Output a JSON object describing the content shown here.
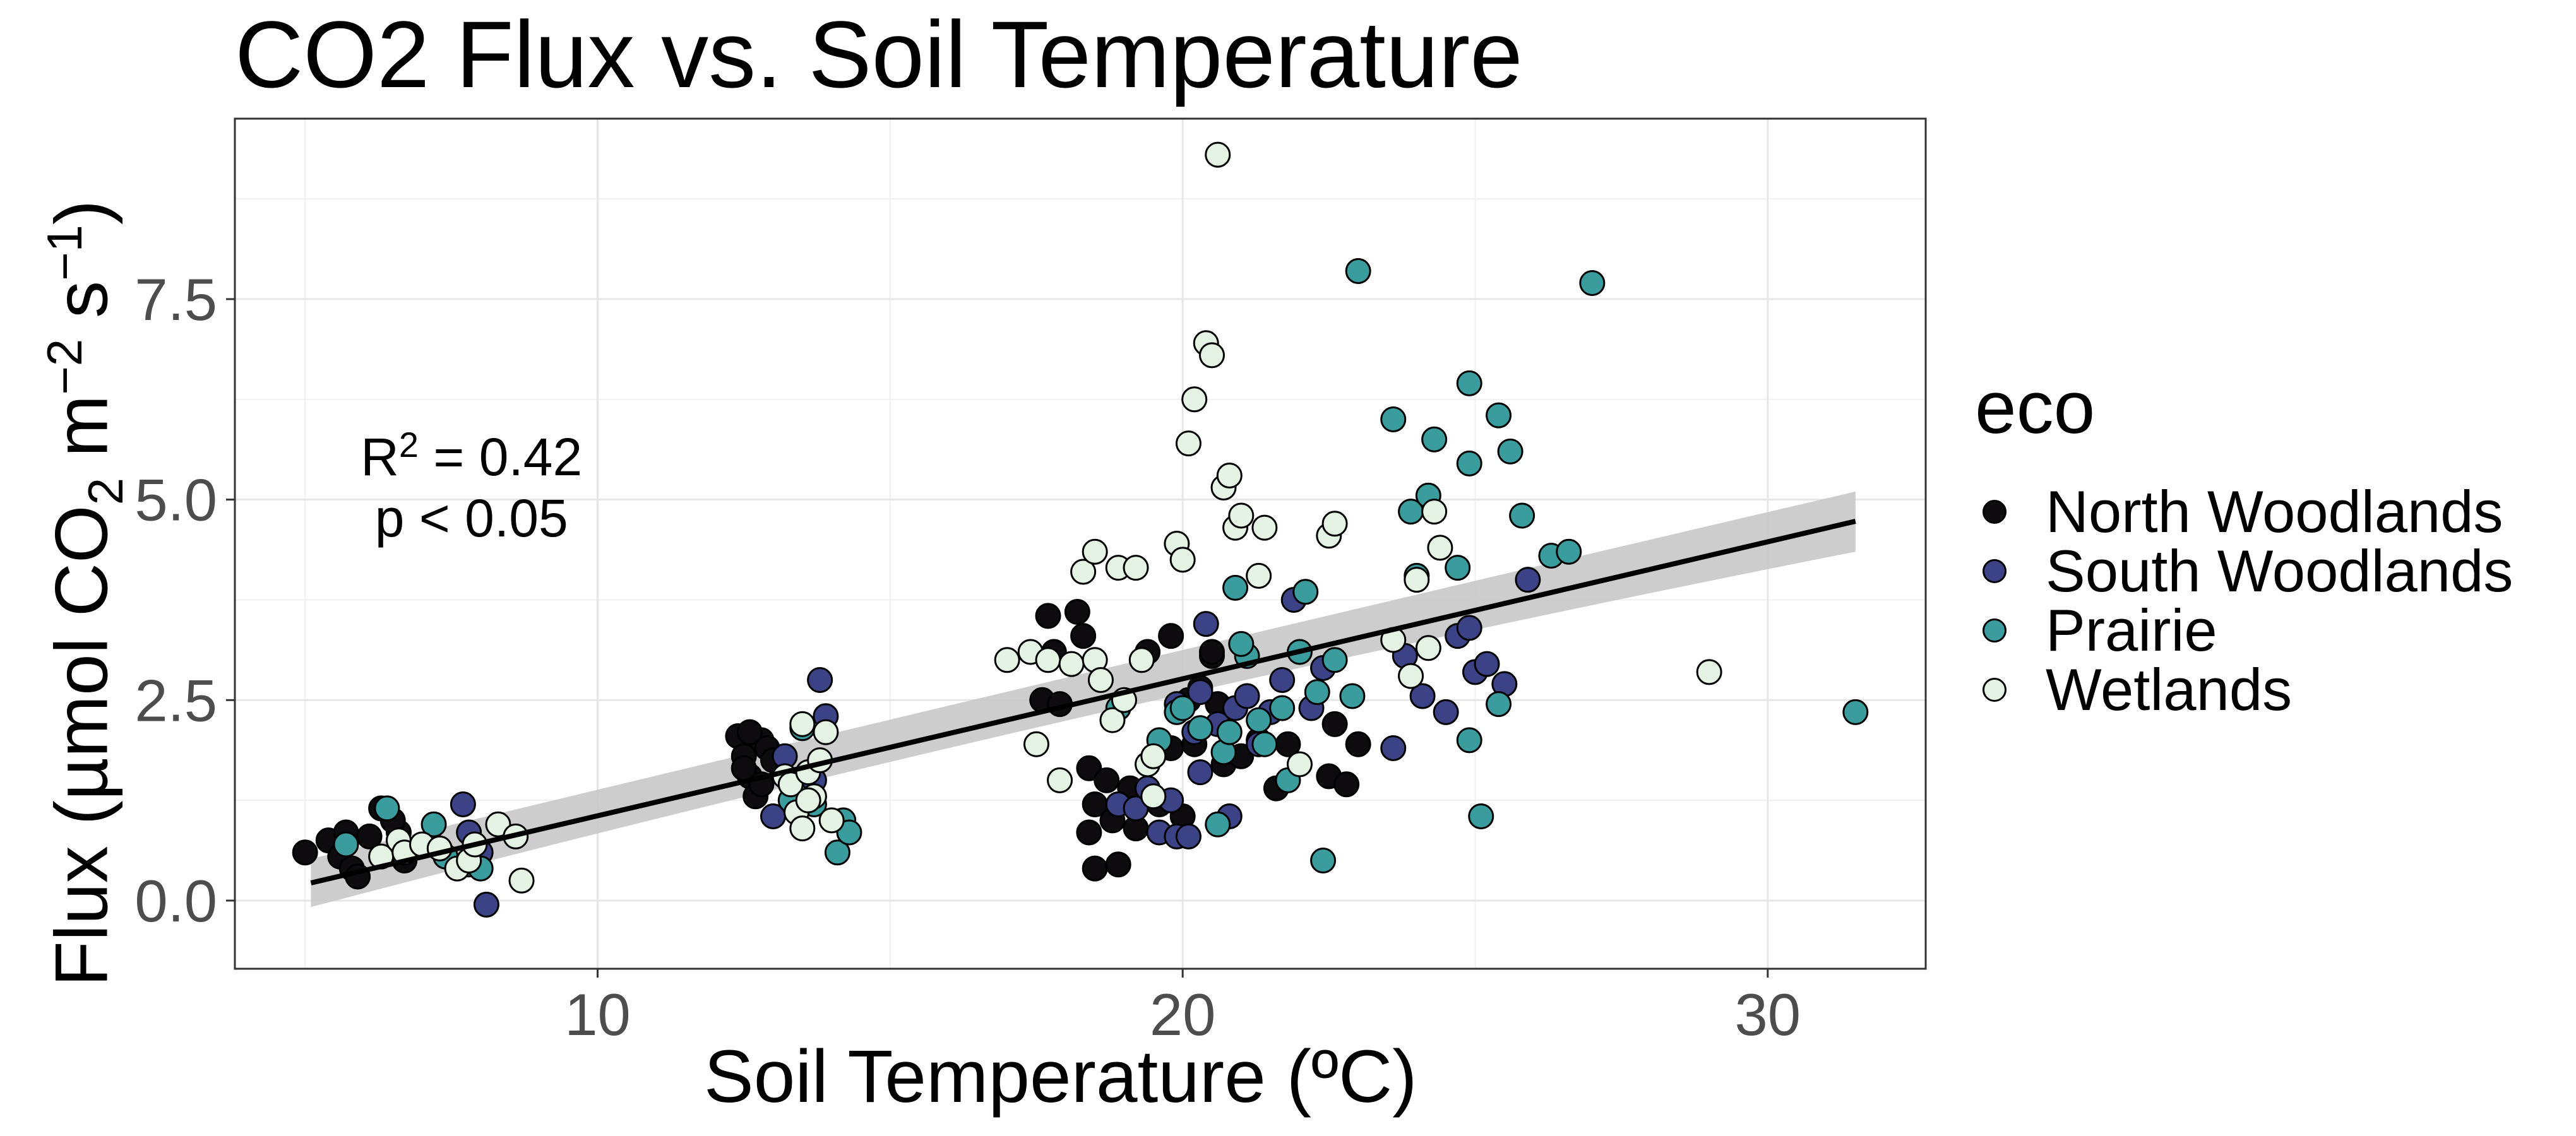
{
  "chart_data": {
    "type": "scatter",
    "title": "CO2 Flux vs. Soil Temperature",
    "xlabel": "Soil Temperature (ºC)",
    "ylabel_parts": {
      "pre": "Flux (µmol CO",
      "sub1": "2",
      "mid": " m",
      "sup1": "−2",
      "mid2": " s",
      "sup2": "−1",
      "post": ")"
    },
    "xlim": [
      3.8,
      32.7
    ],
    "ylim": [
      -0.85,
      9.75
    ],
    "x_ticks": [
      10,
      20,
      30
    ],
    "x_tick_labels": [
      "10",
      "20",
      "30"
    ],
    "y_ticks": [
      0.0,
      2.5,
      5.0,
      7.5
    ],
    "y_tick_labels": [
      "0.0",
      "2.5",
      "5.0",
      "7.5"
    ],
    "grid": true,
    "legend": {
      "title": "eco",
      "placement": "right"
    },
    "annotation": {
      "r2_prefix": "R",
      "r2_sup": "2",
      "r2_suffix": " = 0.42",
      "p_text": "p < 0.05",
      "x": 8.0,
      "y": 5.55
    },
    "trend": {
      "x_start": 5.1,
      "y_start": 0.22,
      "x_end": 31.5,
      "y_end": 4.73,
      "ci_start": [
        -0.08,
        0.52
      ],
      "ci_mid": [
        2.45,
        2.85
      ],
      "x_mid": 18.3,
      "ci_end": [
        4.35,
        5.1
      ]
    },
    "series": [
      {
        "name": "North Woodlands",
        "color": "#0d0b0e",
        "points": [
          [
            5.0,
            0.6
          ],
          [
            5.4,
            0.75
          ],
          [
            5.6,
            0.55
          ],
          [
            5.7,
            0.85
          ],
          [
            5.8,
            0.4
          ],
          [
            5.9,
            0.3
          ],
          [
            6.1,
            0.8
          ],
          [
            6.3,
            1.15
          ],
          [
            6.6,
            0.85
          ],
          [
            6.7,
            0.5
          ],
          [
            6.5,
            1.0
          ],
          [
            12.4,
            2.05
          ],
          [
            12.5,
            1.8
          ],
          [
            12.6,
            1.55
          ],
          [
            12.7,
            1.3
          ],
          [
            12.8,
            2.0
          ],
          [
            12.9,
            1.9
          ],
          [
            12.5,
            1.65
          ],
          [
            12.8,
            1.45
          ],
          [
            13.0,
            1.75
          ],
          [
            12.6,
            2.1
          ],
          [
            17.6,
            2.5
          ],
          [
            17.7,
            3.55
          ],
          [
            17.8,
            3.1
          ],
          [
            17.9,
            2.45
          ],
          [
            18.2,
            3.6
          ],
          [
            18.3,
            3.3
          ],
          [
            18.4,
            1.65
          ],
          [
            18.5,
            1.2
          ],
          [
            18.4,
            0.85
          ],
          [
            18.5,
            0.4
          ],
          [
            18.7,
            1.5
          ],
          [
            18.8,
            1.0
          ],
          [
            18.9,
            0.45
          ],
          [
            19.1,
            1.4
          ],
          [
            19.2,
            0.9
          ],
          [
            19.4,
            3.1
          ],
          [
            19.6,
            1.2
          ],
          [
            19.8,
            3.3
          ],
          [
            19.8,
            1.9
          ],
          [
            20.0,
            1.05
          ],
          [
            20.1,
            2.5
          ],
          [
            20.2,
            1.95
          ],
          [
            20.3,
            2.65
          ],
          [
            20.5,
            3.05
          ],
          [
            20.6,
            2.45
          ],
          [
            20.7,
            1.7
          ],
          [
            21.0,
            1.8
          ],
          [
            21.3,
            2.0
          ],
          [
            21.6,
            1.4
          ],
          [
            21.8,
            1.95
          ],
          [
            22.5,
            1.55
          ],
          [
            22.6,
            2.2
          ],
          [
            22.8,
            1.45
          ],
          [
            23.0,
            1.95
          ],
          [
            20.5,
            3.1
          ]
        ]
      },
      {
        "name": "South Woodlands",
        "color": "#3b4285",
        "points": [
          [
            7.7,
            1.2
          ],
          [
            7.8,
            0.85
          ],
          [
            8.1,
            -0.05
          ],
          [
            8.0,
            0.6
          ],
          [
            13.0,
            1.05
          ],
          [
            13.2,
            1.8
          ],
          [
            13.5,
            1.2
          ],
          [
            13.8,
            2.75
          ],
          [
            13.9,
            2.3
          ],
          [
            13.7,
            1.5
          ],
          [
            18.9,
            1.2
          ],
          [
            19.2,
            1.15
          ],
          [
            19.4,
            1.4
          ],
          [
            19.6,
            0.85
          ],
          [
            19.8,
            1.25
          ],
          [
            19.9,
            0.8
          ],
          [
            20.1,
            0.8
          ],
          [
            20.2,
            2.1
          ],
          [
            20.3,
            2.6
          ],
          [
            20.4,
            3.45
          ],
          [
            20.6,
            2.2
          ],
          [
            20.8,
            1.05
          ],
          [
            20.9,
            2.4
          ],
          [
            21.1,
            2.55
          ],
          [
            21.3,
            1.95
          ],
          [
            21.5,
            2.35
          ],
          [
            21.7,
            2.75
          ],
          [
            21.9,
            3.75
          ],
          [
            22.2,
            2.4
          ],
          [
            22.4,
            2.9
          ],
          [
            23.6,
            1.9
          ],
          [
            23.8,
            3.05
          ],
          [
            24.1,
            2.55
          ],
          [
            24.5,
            2.35
          ],
          [
            24.7,
            3.3
          ],
          [
            24.9,
            3.4
          ],
          [
            25.0,
            2.85
          ],
          [
            25.2,
            2.95
          ],
          [
            25.5,
            2.7
          ],
          [
            25.9,
            4.0
          ],
          [
            19.9,
            2.45
          ],
          [
            20.3,
            1.6
          ]
        ]
      },
      {
        "name": "Prairie",
        "color": "#3a9c9c",
        "points": [
          [
            5.7,
            0.7
          ],
          [
            6.4,
            1.15
          ],
          [
            7.2,
            0.95
          ],
          [
            7.4,
            0.55
          ],
          [
            7.8,
            0.45
          ],
          [
            8.0,
            0.4
          ],
          [
            13.3,
            1.25
          ],
          [
            13.5,
            2.15
          ],
          [
            13.7,
            1.2
          ],
          [
            14.1,
            0.6
          ],
          [
            14.2,
            1.0
          ],
          [
            14.3,
            0.85
          ],
          [
            18.9,
            2.4
          ],
          [
            19.6,
            2.0
          ],
          [
            19.9,
            2.35
          ],
          [
            20.0,
            2.4
          ],
          [
            20.3,
            2.15
          ],
          [
            20.6,
            0.95
          ],
          [
            20.7,
            1.85
          ],
          [
            20.8,
            2.1
          ],
          [
            20.9,
            3.9
          ],
          [
            21.1,
            3.05
          ],
          [
            21.4,
            1.95
          ],
          [
            21.7,
            2.4
          ],
          [
            21.8,
            1.5
          ],
          [
            22.0,
            3.1
          ],
          [
            22.1,
            3.85
          ],
          [
            22.3,
            2.6
          ],
          [
            22.4,
            0.5
          ],
          [
            22.6,
            3.0
          ],
          [
            22.9,
            2.55
          ],
          [
            23.0,
            7.85
          ],
          [
            23.6,
            6.0
          ],
          [
            23.9,
            4.85
          ],
          [
            24.0,
            4.05
          ],
          [
            24.2,
            5.05
          ],
          [
            24.3,
            5.75
          ],
          [
            24.7,
            4.15
          ],
          [
            24.9,
            6.45
          ],
          [
            24.9,
            5.45
          ],
          [
            24.9,
            2.0
          ],
          [
            25.1,
            1.05
          ],
          [
            25.4,
            6.05
          ],
          [
            25.6,
            5.6
          ],
          [
            25.8,
            4.8
          ],
          [
            26.3,
            4.3
          ],
          [
            26.6,
            4.35
          ],
          [
            27.0,
            7.7
          ],
          [
            25.4,
            2.45
          ],
          [
            31.5,
            2.35
          ],
          [
            21.0,
            3.2
          ],
          [
            21.3,
            2.25
          ]
        ]
      },
      {
        "name": "Wetlands",
        "color": "#e4f3e3",
        "points": [
          [
            6.3,
            0.55
          ],
          [
            6.6,
            0.75
          ],
          [
            6.7,
            0.6
          ],
          [
            7.0,
            0.7
          ],
          [
            7.3,
            0.65
          ],
          [
            7.6,
            0.4
          ],
          [
            7.8,
            0.5
          ],
          [
            7.9,
            0.7
          ],
          [
            8.3,
            0.95
          ],
          [
            8.6,
            0.8
          ],
          [
            8.7,
            0.25
          ],
          [
            13.2,
            1.55
          ],
          [
            13.3,
            1.45
          ],
          [
            13.4,
            1.1
          ],
          [
            13.5,
            0.9
          ],
          [
            13.6,
            1.6
          ],
          [
            13.7,
            1.3
          ],
          [
            13.8,
            1.75
          ],
          [
            13.9,
            2.1
          ],
          [
            14.0,
            1.0
          ],
          [
            13.5,
            2.2
          ],
          [
            13.6,
            1.25
          ],
          [
            17.0,
            3.0
          ],
          [
            17.4,
            3.1
          ],
          [
            17.5,
            1.95
          ],
          [
            17.7,
            3.0
          ],
          [
            17.9,
            1.5
          ],
          [
            18.1,
            2.95
          ],
          [
            18.3,
            4.1
          ],
          [
            18.5,
            4.35
          ],
          [
            18.5,
            3.0
          ],
          [
            18.6,
            2.75
          ],
          [
            18.8,
            2.25
          ],
          [
            18.9,
            4.15
          ],
          [
            19.0,
            2.5
          ],
          [
            19.2,
            4.15
          ],
          [
            19.3,
            3.0
          ],
          [
            19.4,
            1.7
          ],
          [
            19.5,
            1.8
          ],
          [
            19.5,
            1.3
          ],
          [
            19.9,
            4.45
          ],
          [
            20.0,
            4.25
          ],
          [
            20.1,
            5.7
          ],
          [
            20.2,
            6.25
          ],
          [
            20.4,
            6.95
          ],
          [
            20.5,
            6.8
          ],
          [
            20.6,
            9.3
          ],
          [
            20.7,
            5.15
          ],
          [
            20.8,
            5.3
          ],
          [
            20.9,
            4.65
          ],
          [
            21.0,
            4.8
          ],
          [
            21.3,
            4.05
          ],
          [
            21.4,
            4.65
          ],
          [
            22.0,
            1.7
          ],
          [
            22.5,
            4.55
          ],
          [
            22.6,
            4.7
          ],
          [
            23.6,
            3.25
          ],
          [
            23.9,
            2.8
          ],
          [
            24.0,
            4.0
          ],
          [
            24.2,
            3.15
          ],
          [
            24.3,
            4.85
          ],
          [
            24.4,
            4.4
          ],
          [
            29.0,
            2.85
          ]
        ]
      }
    ]
  }
}
